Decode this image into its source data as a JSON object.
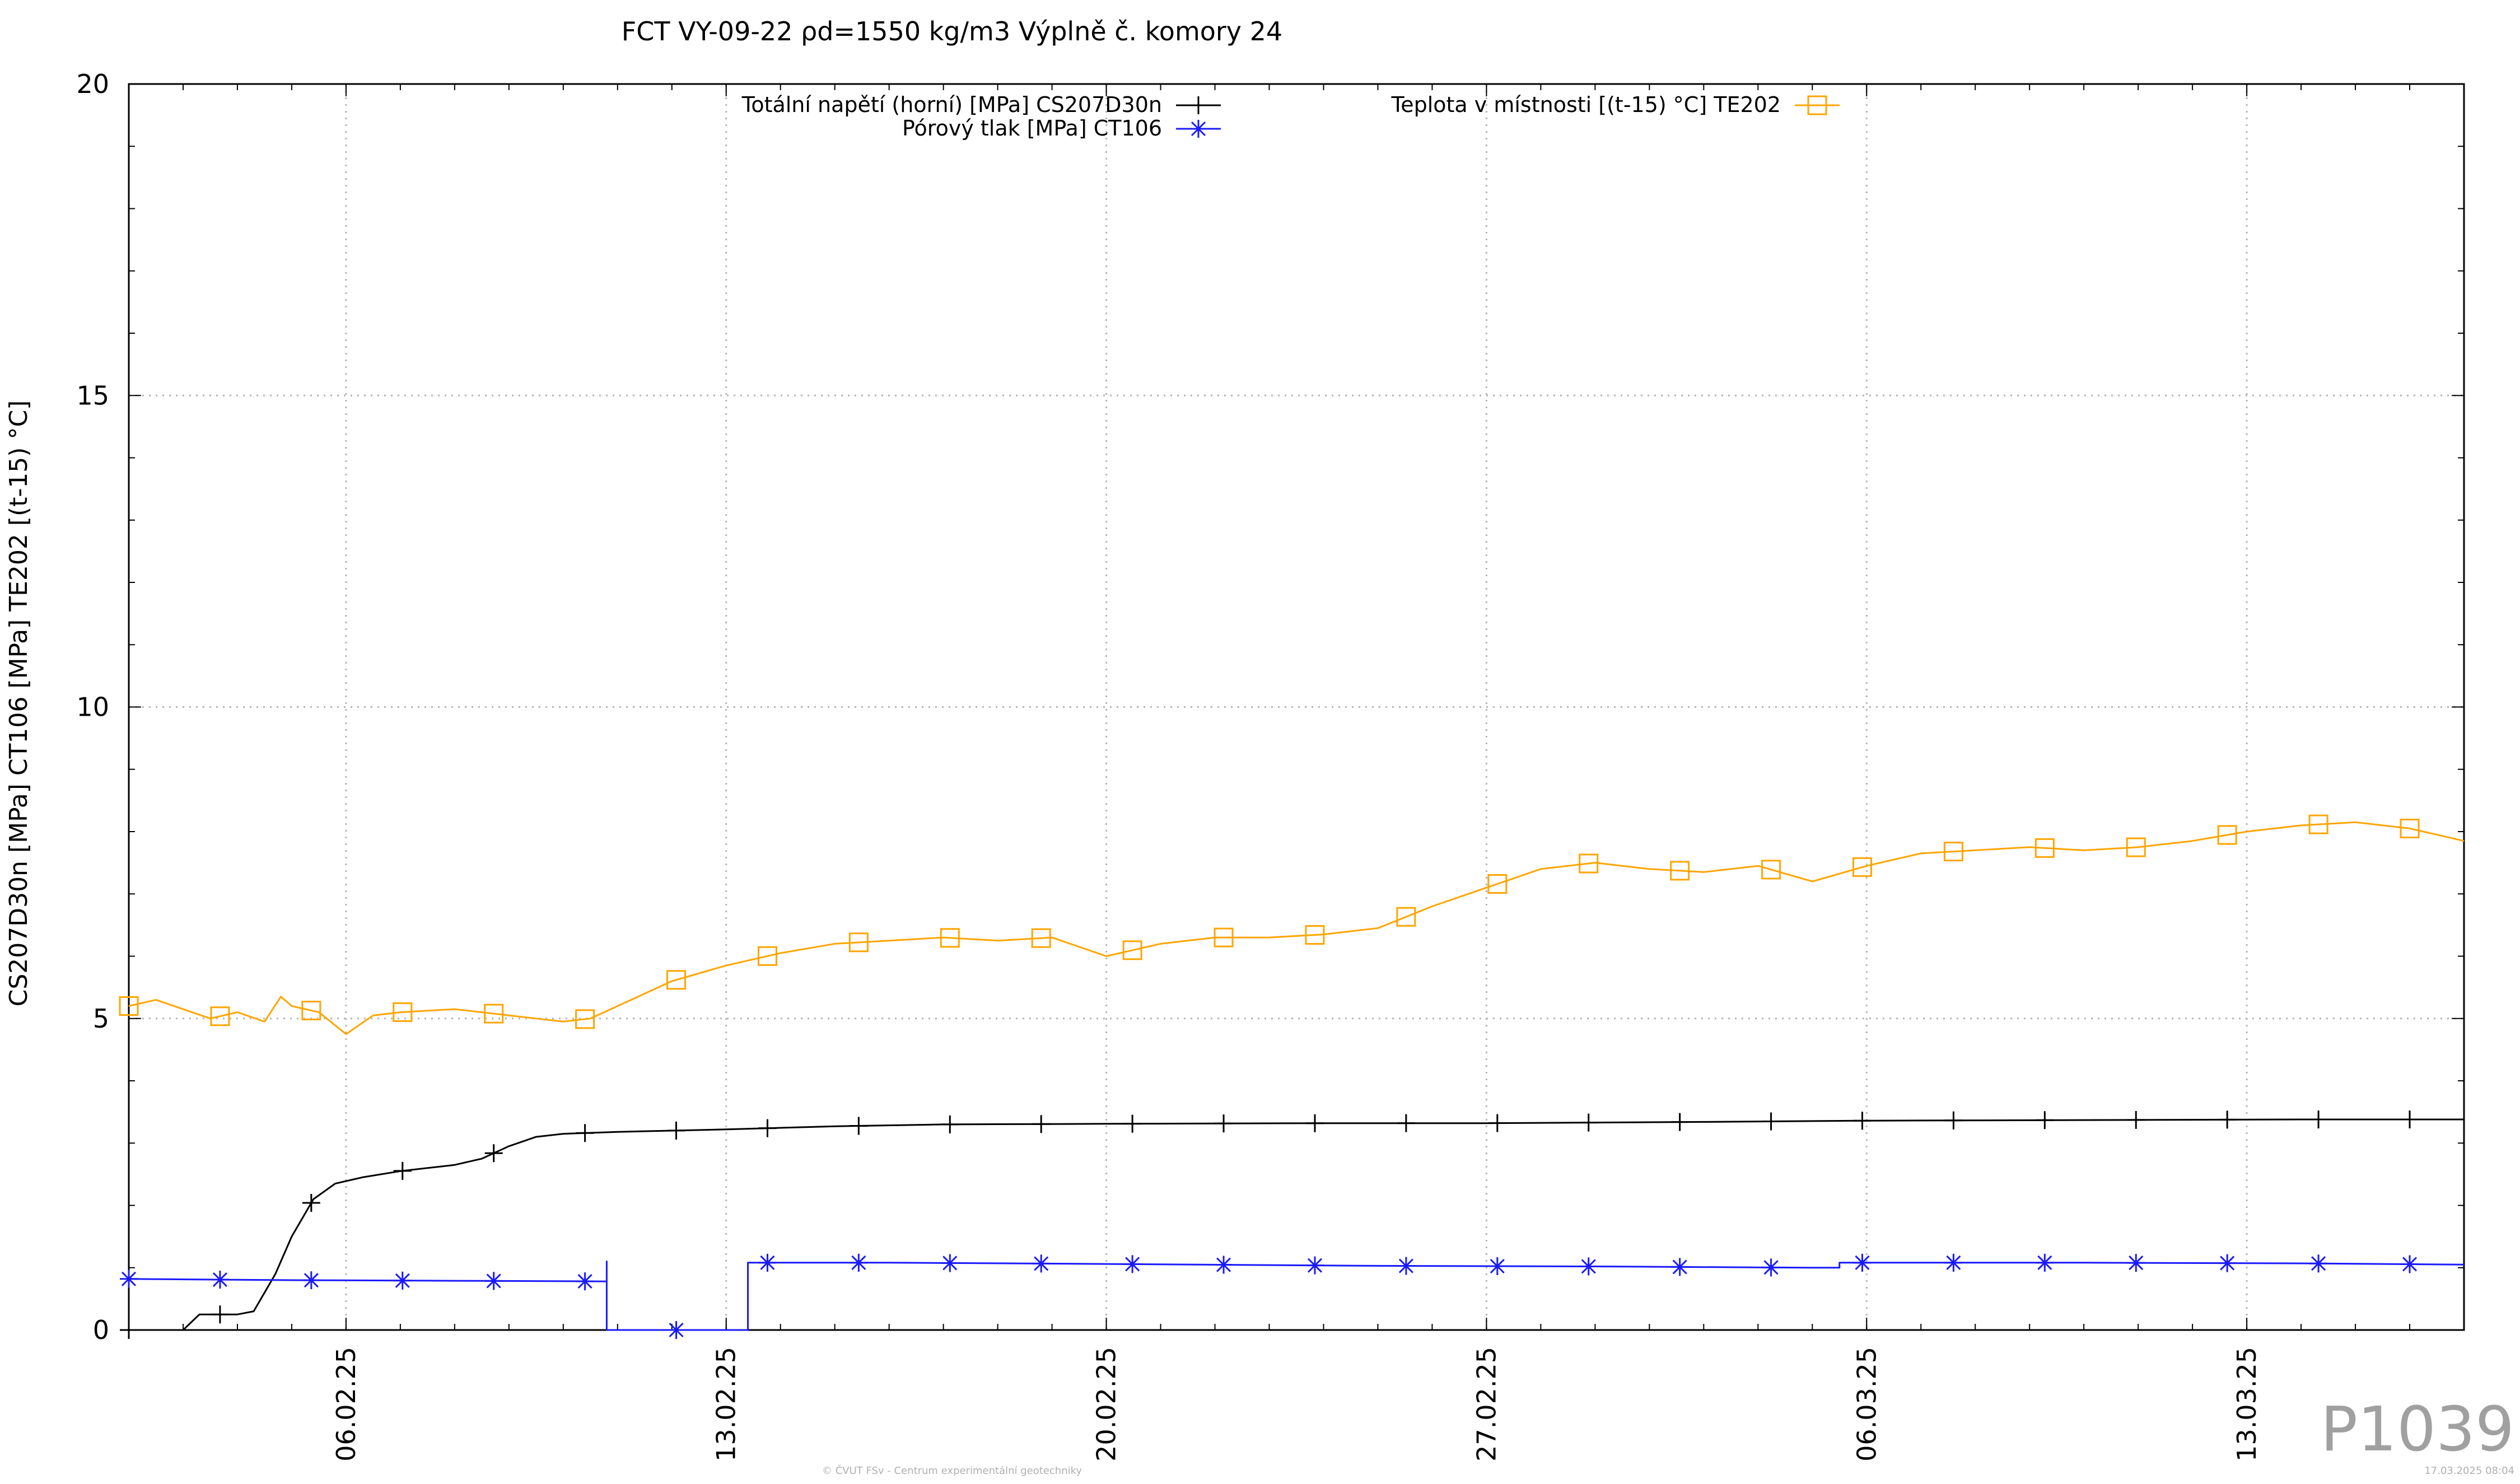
{
  "chart_data": {
    "type": "line",
    "title": "FCT VY-09-22 ρd=1550 kg/m3 Výplně č. komory 24",
    "ylabel": "CS207D30n [MPa] CT106 [MPa] TE202 [(t-15) °C]",
    "xlabel": "",
    "ylim": [
      0,
      20
    ],
    "y_ticks": [
      0,
      5,
      10,
      15,
      20
    ],
    "x_range": [
      "2025-02-02",
      "2025-03-17"
    ],
    "x_ticks": [
      "06.02.25",
      "13.02.25",
      "20.02.25",
      "27.02.25",
      "06.03.25",
      "13.03.25"
    ],
    "x_tick_dates": [
      "2025-02-06",
      "2025-02-13",
      "2025-02-20",
      "2025-02-27",
      "2025-03-06",
      "2025-03-13"
    ],
    "grid": true,
    "legend_position": "top",
    "series": [
      {
        "name": "Totální napětí (horní) [MPa] CS207D30n",
        "color": "#000000",
        "marker": "plus",
        "points": [
          [
            "2025-02-02",
            0.0
          ],
          [
            "2025-02-03",
            0.0
          ],
          [
            "2025-02-03.3",
            0.25
          ],
          [
            "2025-02-04",
            0.25
          ],
          [
            "2025-02-04.3",
            0.3
          ],
          [
            "2025-02-04.7",
            0.9
          ],
          [
            "2025-02-05",
            1.5
          ],
          [
            "2025-02-05.4",
            2.1
          ],
          [
            "2025-02-05.8",
            2.35
          ],
          [
            "2025-02-06.3",
            2.45
          ],
          [
            "2025-02-07",
            2.55
          ],
          [
            "2025-02-08",
            2.65
          ],
          [
            "2025-02-08.5",
            2.75
          ],
          [
            "2025-02-09",
            2.95
          ],
          [
            "2025-02-09.5",
            3.1
          ],
          [
            "2025-02-10",
            3.15
          ],
          [
            "2025-02-11",
            3.18
          ],
          [
            "2025-02-12",
            3.2
          ],
          [
            "2025-02-13",
            3.22
          ],
          [
            "2025-02-15",
            3.27
          ],
          [
            "2025-02-17",
            3.3
          ],
          [
            "2025-02-20",
            3.31
          ],
          [
            "2025-02-24",
            3.32
          ],
          [
            "2025-02-27",
            3.32
          ],
          [
            "2025-03-03",
            3.34
          ],
          [
            "2025-03-06",
            3.36
          ],
          [
            "2025-03-10",
            3.37
          ],
          [
            "2025-03-14",
            3.38
          ],
          [
            "2025-03-17",
            3.38
          ]
        ]
      },
      {
        "name": "Pórový tlak [MPa] CT106",
        "color": "#1a1aff",
        "marker": "star",
        "points": [
          [
            "2025-02-02",
            0.82
          ],
          [
            "2025-02-05",
            0.8
          ],
          [
            "2025-02-08",
            0.79
          ],
          [
            "2025-02-10.8",
            0.78
          ],
          [
            "2025-02-10.8",
            1.1
          ],
          [
            "2025-02-10.8",
            0.0
          ],
          [
            "2025-02-13",
            0.0
          ],
          [
            "2025-02-13.4",
            0.0
          ],
          [
            "2025-02-13.4",
            1.08
          ],
          [
            "2025-02-16",
            1.08
          ],
          [
            "2025-02-20",
            1.06
          ],
          [
            "2025-02-25",
            1.03
          ],
          [
            "2025-03-01",
            1.02
          ],
          [
            "2025-03-05",
            1.0
          ],
          [
            "2025-03-05.5",
            1.0
          ],
          [
            "2025-03-05.5",
            1.08
          ],
          [
            "2025-03-10",
            1.08
          ],
          [
            "2025-03-14",
            1.07
          ],
          [
            "2025-03-17",
            1.05
          ]
        ]
      },
      {
        "name": "Teplota v místnosti [(t-15) °C] TE202",
        "color": "#ffa500",
        "marker": "square",
        "points": [
          [
            "2025-02-02",
            5.2
          ],
          [
            "2025-02-02.5",
            5.3
          ],
          [
            "2025-02-03",
            5.15
          ],
          [
            "2025-02-03.5",
            5.0
          ],
          [
            "2025-02-04",
            5.1
          ],
          [
            "2025-02-04.5",
            4.95
          ],
          [
            "2025-02-04.8",
            5.35
          ],
          [
            "2025-02-05",
            5.2
          ],
          [
            "2025-02-05.5",
            5.1
          ],
          [
            "2025-02-06",
            4.75
          ],
          [
            "2025-02-06.5",
            5.05
          ],
          [
            "2025-02-07",
            5.1
          ],
          [
            "2025-02-08",
            5.15
          ],
          [
            "2025-02-09",
            5.05
          ],
          [
            "2025-02-10",
            4.95
          ],
          [
            "2025-02-10.5",
            5.0
          ],
          [
            "2025-02-11",
            5.2
          ],
          [
            "2025-02-11.5",
            5.4
          ],
          [
            "2025-02-12",
            5.6
          ],
          [
            "2025-02-13",
            5.85
          ],
          [
            "2025-02-14",
            6.05
          ],
          [
            "2025-02-15",
            6.2
          ],
          [
            "2025-02-16",
            6.25
          ],
          [
            "2025-02-17",
            6.3
          ],
          [
            "2025-02-18",
            6.25
          ],
          [
            "2025-02-19",
            6.3
          ],
          [
            "2025-02-20",
            6.0
          ],
          [
            "2025-02-21",
            6.2
          ],
          [
            "2025-02-22",
            6.3
          ],
          [
            "2025-02-23",
            6.3
          ],
          [
            "2025-02-24",
            6.35
          ],
          [
            "2025-02-25",
            6.45
          ],
          [
            "2025-02-26",
            6.8
          ],
          [
            "2025-02-27",
            7.1
          ],
          [
            "2025-02-28",
            7.4
          ],
          [
            "2025-03-01",
            7.5
          ],
          [
            "2025-03-02",
            7.4
          ],
          [
            "2025-03-03",
            7.35
          ],
          [
            "2025-03-04",
            7.45
          ],
          [
            "2025-03-05",
            7.2
          ],
          [
            "2025-03-06",
            7.45
          ],
          [
            "2025-03-07",
            7.65
          ],
          [
            "2025-03-08",
            7.7
          ],
          [
            "2025-03-09",
            7.75
          ],
          [
            "2025-03-10",
            7.7
          ],
          [
            "2025-03-11",
            7.75
          ],
          [
            "2025-03-12",
            7.85
          ],
          [
            "2025-03-13",
            8.0
          ],
          [
            "2025-03-14",
            8.1
          ],
          [
            "2025-03-15",
            8.15
          ],
          [
            "2025-03-16",
            8.05
          ],
          [
            "2025-03-17",
            7.85
          ]
        ]
      }
    ]
  },
  "footer": {
    "watermark": "P1039",
    "credit": "© ČVUT FSv - Centrum experimentální geotechniky",
    "timestamp": "17.03.2025 08:04"
  }
}
